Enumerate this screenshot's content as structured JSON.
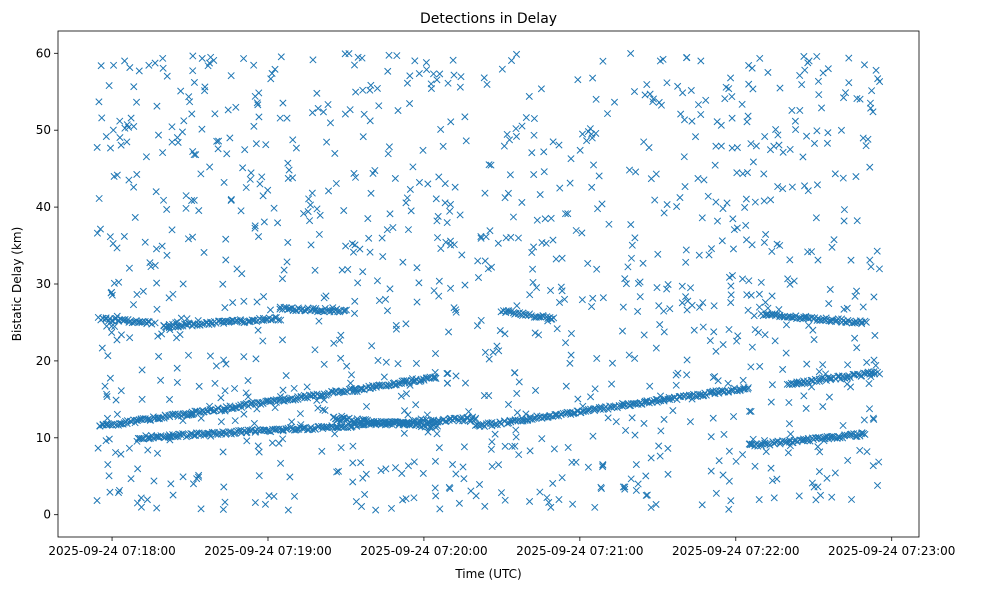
{
  "chart_data": {
    "type": "scatter",
    "title": "Detections in Delay",
    "xlabel": "Time (UTC)",
    "ylabel": "Bistatic Delay (km)",
    "marker": "x",
    "color": "#1f77b4",
    "xlim_seconds": [
      -20.8,
      310.5
    ],
    "ylim": [
      -2.9,
      62.9
    ],
    "x_origin": "2025-09-24 07:18:00",
    "xticks": [
      {
        "seconds": 0,
        "label": "2025-09-24 07:18:00"
      },
      {
        "seconds": 60,
        "label": "2025-09-24 07:19:00"
      },
      {
        "seconds": 120,
        "label": "2025-09-24 07:20:00"
      },
      {
        "seconds": 180,
        "label": "2025-09-24 07:21:00"
      },
      {
        "seconds": 240,
        "label": "2025-09-24 07:22:00"
      },
      {
        "seconds": 300,
        "label": "2025-09-24 07:23:00"
      }
    ],
    "yticks": [
      0,
      10,
      20,
      30,
      40,
      50,
      60
    ],
    "x_data_range_seconds": [
      -5.8,
      295.5
    ],
    "tracks": [
      {
        "name": "track-a-rising",
        "x_range": [
          -5,
          125
        ],
        "y_range": [
          11.5,
          17.8
        ]
      },
      {
        "name": "track-b-rising",
        "x_range": [
          10,
          140
        ],
        "y_range": [
          10.0,
          12.5
        ]
      },
      {
        "name": "track-c-falling",
        "x_range": [
          85,
          125
        ],
        "y_range": [
          12.5,
          11.5
        ]
      },
      {
        "name": "track-d-rising",
        "x_range": [
          140,
          245
        ],
        "y_range": [
          11.5,
          16.5
        ]
      },
      {
        "name": "track-e-rising",
        "x_range": [
          245,
          290
        ],
        "y_range": [
          9.0,
          10.5
        ]
      },
      {
        "name": "track-f-rising",
        "x_range": [
          260,
          295
        ],
        "y_range": [
          17.0,
          18.5
        ]
      },
      {
        "name": "track-g-upper",
        "x_range": [
          -5,
          15
        ],
        "y_range": [
          25.5,
          25.0
        ]
      },
      {
        "name": "track-h-upper",
        "x_range": [
          20,
          65
        ],
        "y_range": [
          24.5,
          25.5
        ]
      },
      {
        "name": "track-i-upper",
        "x_range": [
          65,
          90
        ],
        "y_range": [
          26.8,
          26.5
        ]
      },
      {
        "name": "track-j-upper",
        "x_range": [
          150,
          170
        ],
        "y_range": [
          26.5,
          25.5
        ]
      },
      {
        "name": "track-k-upper",
        "x_range": [
          250,
          290
        ],
        "y_range": [
          26.0,
          25.0
        ]
      }
    ],
    "background_noise": {
      "count": 1100,
      "y_range": [
        0.5,
        60
      ],
      "x_range": [
        -5.8,
        295.5
      ]
    }
  }
}
